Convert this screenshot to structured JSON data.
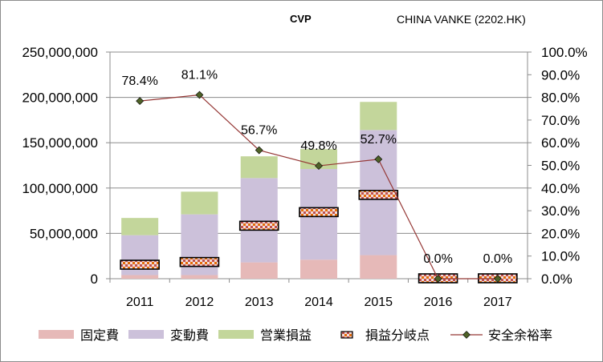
{
  "chart_data": {
    "type": "bar",
    "title": "CVP",
    "subtitle": "CHINA VANKE (2202.HK)",
    "categories": [
      "2011",
      "2012",
      "2013",
      "2014",
      "2015",
      "2016",
      "2017"
    ],
    "series": [
      {
        "name": "固定費",
        "type": "stacked-bar",
        "color": "#e6b9b8",
        "values": [
          4000000,
          4000000,
          18000000,
          21000000,
          26000000,
          0,
          0
        ]
      },
      {
        "name": "変動費",
        "type": "stacked-bar",
        "color": "#ccc1da",
        "values": [
          44000000,
          67000000,
          93000000,
          100000000,
          138000000,
          0,
          0
        ]
      },
      {
        "name": "営業損益",
        "type": "stacked-bar",
        "color": "#c3d69b",
        "values": [
          19000000,
          25000000,
          24000000,
          22000000,
          31000000,
          0,
          0
        ]
      },
      {
        "name": "損益分岐点",
        "type": "marker",
        "color": "#c0504d",
        "values": [
          15000000,
          18000000,
          58000000,
          73000000,
          92000000,
          0,
          0
        ]
      },
      {
        "name": "安全余裕率",
        "type": "line",
        "axis": "right",
        "color": "#953735",
        "marker_color": "#4f6228",
        "values": [
          78.4,
          81.1,
          56.7,
          49.8,
          52.7,
          0.0,
          0.0
        ],
        "labels": [
          "78.4%",
          "81.1%",
          "56.7%",
          "49.8%",
          "52.7%",
          "0.0%",
          "0.0%"
        ]
      }
    ],
    "y_left": {
      "ylim": [
        0,
        250000000
      ],
      "ticks": [
        "0",
        "50,000,000",
        "100,000,000",
        "150,000,000",
        "200,000,000",
        "250,000,000"
      ]
    },
    "y_right": {
      "ylim": [
        0,
        100
      ],
      "ticks": [
        "0.0%",
        "10.0%",
        "20.0%",
        "30.0%",
        "40.0%",
        "50.0%",
        "60.0%",
        "70.0%",
        "80.0%",
        "90.0%",
        "100.0%"
      ]
    },
    "legend_position": "bottom",
    "grid": "horizontal"
  }
}
